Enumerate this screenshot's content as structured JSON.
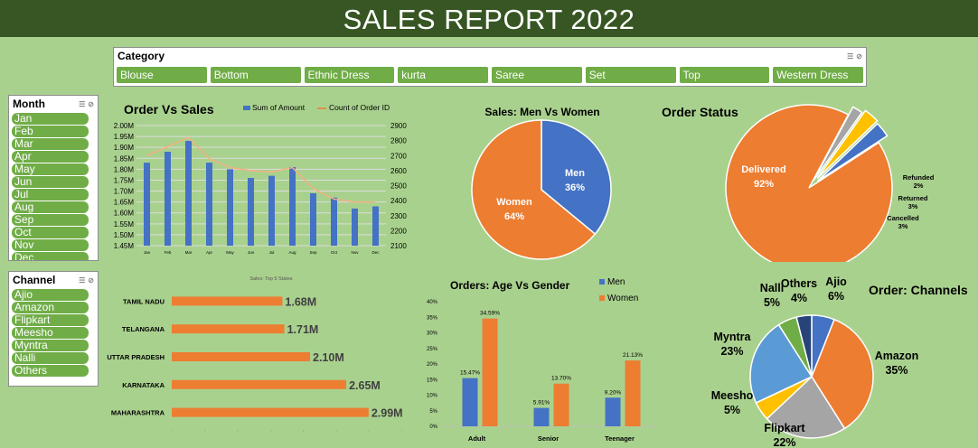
{
  "title": "SALES REPORT 2022",
  "category_slicer": {
    "header": "Category",
    "items": [
      "Blouse",
      "Bottom",
      "Ethnic Dress",
      "kurta",
      "Saree",
      "Set",
      "Top",
      "Western Dress"
    ]
  },
  "month_slicer": {
    "header": "Month",
    "items": [
      "Jan",
      "Feb",
      "Mar",
      "Apr",
      "May",
      "Jun",
      "Jul",
      "Aug",
      "Sep",
      "Oct",
      "Nov",
      "Dec"
    ]
  },
  "channel_slicer": {
    "header": "Channel",
    "items": [
      "Ajio",
      "Amazon",
      "Flipkart",
      "Meesho",
      "Myntra",
      "Nalli",
      "Others"
    ]
  },
  "colors": {
    "blue": "#4472c4",
    "orange": "#ed7d31",
    "gray": "#a5a5a5",
    "yellow": "#ffc000",
    "lightblue": "#5b9bd5",
    "green": "#70ad47",
    "navy": "#264478",
    "darkgreen": "#375623"
  },
  "chart_data": [
    {
      "id": "order_vs_sales",
      "type": "bar+line",
      "title": "Order Vs Sales",
      "categories": [
        "Jan",
        "Feb",
        "Mar",
        "Apr",
        "May",
        "Jun",
        "Jul",
        "Aug",
        "Sep",
        "Oct",
        "Nov",
        "Dec"
      ],
      "series": [
        {
          "name": "Sum of Amount",
          "type": "bar",
          "axis": "left",
          "values": [
            1.83,
            1.88,
            1.93,
            1.83,
            1.8,
            1.76,
            1.77,
            1.81,
            1.69,
            1.67,
            1.62,
            1.63
          ]
        },
        {
          "name": "Count of Order ID",
          "type": "line",
          "axis": "right",
          "values": [
            2700,
            2760,
            2820,
            2680,
            2620,
            2600,
            2590,
            2620,
            2480,
            2410,
            2390,
            2390
          ]
        }
      ],
      "y_left": {
        "min": 1.45,
        "max": 2.0,
        "step": 0.05,
        "ticks": [
          "1.45M",
          "1.50M",
          "1.55M",
          "1.60M",
          "1.65M",
          "1.70M",
          "1.75M",
          "1.80M",
          "1.85M",
          "1.90M",
          "1.95M",
          "2.00M"
        ]
      },
      "y_right": {
        "min": 2100,
        "max": 2900,
        "step": 100,
        "ticks": [
          "2100",
          "2200",
          "2300",
          "2400",
          "2500",
          "2600",
          "2700",
          "2800",
          "2900"
        ]
      },
      "legend": "top-right",
      "grid": true
    },
    {
      "id": "men_vs_women",
      "type": "pie",
      "title": "Sales: Men Vs Women",
      "slices": [
        {
          "label": "Men",
          "value": 36,
          "display": "36%"
        },
        {
          "label": "Women",
          "value": 64,
          "display": "64%"
        }
      ]
    },
    {
      "id": "order_status",
      "type": "pie",
      "title": "Order Status",
      "slices": [
        {
          "label": "Delivered",
          "value": 92,
          "display": "92%"
        },
        {
          "label": "Refunded",
          "value": 2,
          "display": "2%"
        },
        {
          "label": "Returned",
          "value": 3,
          "display": "3%"
        },
        {
          "label": "Cancelled",
          "value": 3,
          "display": "3%"
        }
      ]
    },
    {
      "id": "top5_states",
      "type": "bar",
      "orientation": "horizontal",
      "title": "Sales: Top 5 States",
      "categories": [
        "TAMIL NADU",
        "TELANGANA",
        "UTTAR PRADESH",
        "KARNATAKA",
        "MAHARASHTRA"
      ],
      "values": [
        1.68,
        1.71,
        2.1,
        2.65,
        2.99
      ],
      "value_labels": [
        "1.68M",
        "1.71M",
        "2.10M",
        "2.65M",
        "2.99M"
      ],
      "xlim": [
        0,
        3.5
      ]
    },
    {
      "id": "age_vs_gender",
      "type": "bar",
      "title": "Orders: Age Vs Gender",
      "categories": [
        "Adult",
        "Senior",
        "Teenager"
      ],
      "series": [
        {
          "name": "Men",
          "values": [
            15.47,
            5.91,
            9.2
          ],
          "labels": [
            "15.47%",
            "5.91%",
            "9.20%"
          ]
        },
        {
          "name": "Women",
          "values": [
            34.59,
            13.7,
            21.13
          ],
          "labels": [
            "34.59%",
            "13.70%",
            "21.13%"
          ]
        }
      ],
      "ylim": [
        0,
        40
      ],
      "ticks": [
        "0%",
        "5%",
        "10%",
        "15%",
        "20%",
        "25%",
        "30%",
        "35%",
        "40%"
      ],
      "legend": "top-right"
    },
    {
      "id": "channels",
      "type": "pie",
      "title": "Order: Channels",
      "slices": [
        {
          "label": "Ajio",
          "value": 6,
          "display": "6%"
        },
        {
          "label": "Amazon",
          "value": 35,
          "display": "35%"
        },
        {
          "label": "Flipkart",
          "value": 22,
          "display": "22%"
        },
        {
          "label": "Meesho",
          "value": 5,
          "display": "5%"
        },
        {
          "label": "Myntra",
          "value": 23,
          "display": "23%"
        },
        {
          "label": "Nalli",
          "value": 5,
          "display": "5%"
        },
        {
          "label": "Others",
          "value": 4,
          "display": "4%"
        }
      ]
    }
  ]
}
